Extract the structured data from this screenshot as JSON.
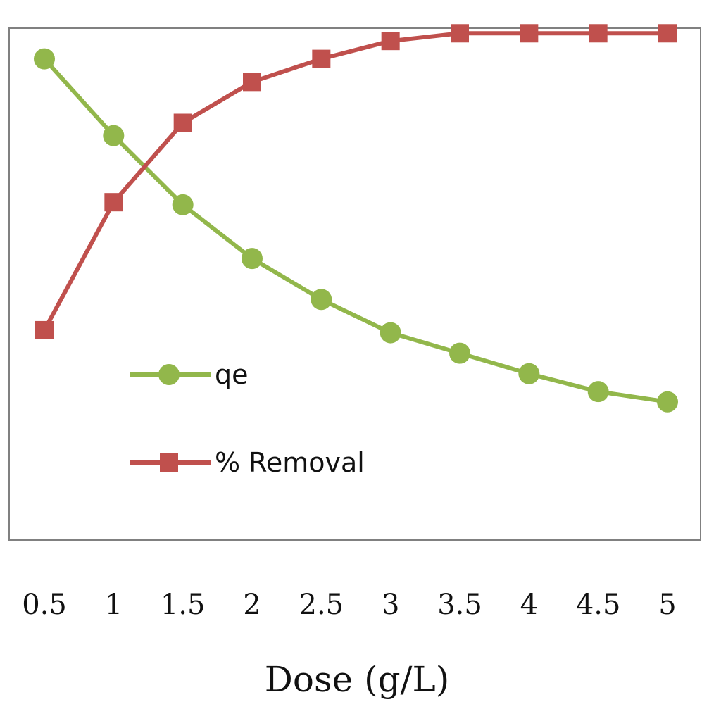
{
  "chart_data": {
    "type": "line",
    "title": "",
    "xlabel": "Dose (g/L)",
    "ylabel": "",
    "categories": [
      "0.5",
      "1",
      "1.5",
      "2",
      "2.5",
      "3",
      "3.5",
      "4",
      "4.5",
      "5"
    ],
    "grid": false,
    "legend_position": "center-left",
    "ylim": [
      0,
      100
    ],
    "series": [
      {
        "name": "qe",
        "color": "#92b74b",
        "marker": "circle",
        "values": [
          94,
          79,
          65.5,
          55,
          47,
          40.5,
          36.5,
          32.5,
          29,
          27
        ]
      },
      {
        "name": "% Removal",
        "color": "#c0504d",
        "marker": "square",
        "values": [
          41,
          66,
          81.5,
          89.5,
          94,
          97.5,
          99,
          99,
          99,
          99
        ]
      }
    ]
  }
}
